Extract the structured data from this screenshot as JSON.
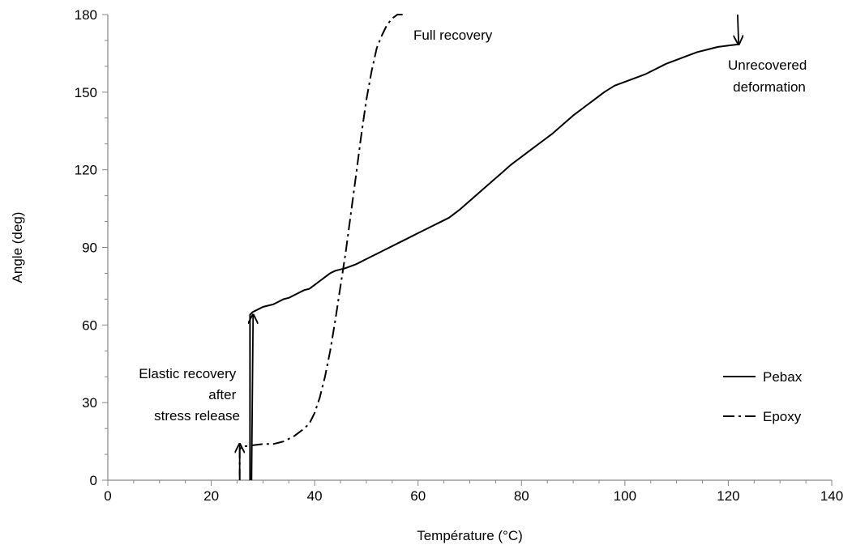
{
  "chart_data": {
    "type": "line",
    "title": "",
    "xlabel": "Température (°C)",
    "ylabel": "Angle (deg)",
    "xlim": [
      0,
      140
    ],
    "ylim": [
      0,
      180
    ],
    "x_ticks": [
      0,
      20,
      40,
      60,
      80,
      100,
      120,
      140
    ],
    "y_ticks": [
      0,
      30,
      60,
      90,
      120,
      150,
      180
    ],
    "grid": false,
    "legend_position": "right",
    "series": [
      {
        "name": "Pebax",
        "style": "solid",
        "color": "#000000",
        "points": [
          [
            27.5,
            0
          ],
          [
            27.5,
            64
          ],
          [
            28,
            65
          ],
          [
            29,
            66
          ],
          [
            30,
            67
          ],
          [
            31,
            67.5
          ],
          [
            32,
            68
          ],
          [
            33,
            69
          ],
          [
            34,
            70
          ],
          [
            35,
            70.5
          ],
          [
            36,
            71.5
          ],
          [
            37,
            72.5
          ],
          [
            38,
            73.5
          ],
          [
            39,
            74
          ],
          [
            40,
            75.5
          ],
          [
            41,
            77
          ],
          [
            42,
            78.5
          ],
          [
            43,
            80
          ],
          [
            44,
            81
          ],
          [
            45,
            81.5
          ],
          [
            46,
            82
          ],
          [
            48,
            83.5
          ],
          [
            50,
            85.5
          ],
          [
            52,
            87.5
          ],
          [
            54,
            89.5
          ],
          [
            56,
            91.5
          ],
          [
            58,
            93.5
          ],
          [
            60,
            95.5
          ],
          [
            62,
            97.5
          ],
          [
            64,
            99.5
          ],
          [
            66,
            101.5
          ],
          [
            68,
            104.5
          ],
          [
            70,
            108
          ],
          [
            72,
            111.5
          ],
          [
            74,
            115
          ],
          [
            76,
            118.5
          ],
          [
            78,
            122
          ],
          [
            80,
            125
          ],
          [
            82,
            128
          ],
          [
            84,
            131
          ],
          [
            86,
            134
          ],
          [
            88,
            137.5
          ],
          [
            90,
            141
          ],
          [
            92,
            144
          ],
          [
            94,
            147
          ],
          [
            96,
            150
          ],
          [
            98,
            152.5
          ],
          [
            100,
            154
          ],
          [
            102,
            155.5
          ],
          [
            104,
            157
          ],
          [
            106,
            159
          ],
          [
            108,
            161
          ],
          [
            110,
            162.5
          ],
          [
            112,
            164
          ],
          [
            114,
            165.5
          ],
          [
            116,
            166.5
          ],
          [
            118,
            167.5
          ],
          [
            120,
            168
          ],
          [
            122,
            168.5
          ]
        ]
      },
      {
        "name": "Epoxy",
        "style": "dash-dot",
        "color": "#000000",
        "points": [
          [
            25.5,
            0
          ],
          [
            25.5,
            12
          ],
          [
            26,
            13
          ],
          [
            28,
            13.5
          ],
          [
            30,
            14
          ],
          [
            32,
            14
          ],
          [
            34,
            15
          ],
          [
            36,
            17
          ],
          [
            38,
            20
          ],
          [
            39,
            22
          ],
          [
            40,
            26
          ],
          [
            41,
            32
          ],
          [
            42,
            40
          ],
          [
            43,
            50
          ],
          [
            44,
            62
          ],
          [
            45,
            75
          ],
          [
            46,
            88
          ],
          [
            47,
            103
          ],
          [
            48,
            118
          ],
          [
            49,
            133
          ],
          [
            50,
            147
          ],
          [
            51,
            158
          ],
          [
            52,
            167
          ],
          [
            53,
            172
          ],
          [
            54,
            176
          ],
          [
            55,
            178.5
          ],
          [
            56,
            180
          ],
          [
            57,
            180
          ]
        ]
      }
    ],
    "legend": [
      {
        "label": "Pebax",
        "style": "solid"
      },
      {
        "label": "Epoxy",
        "style": "dash-dot"
      }
    ],
    "annotations": [
      {
        "id": "elastic",
        "lines": [
          "Elastic recovery",
          "after",
          "stress release"
        ]
      },
      {
        "id": "full",
        "lines": [
          "Full recovery"
        ]
      },
      {
        "id": "unrecovered",
        "lines": [
          "Unrecovered",
          "deformation"
        ]
      }
    ]
  }
}
